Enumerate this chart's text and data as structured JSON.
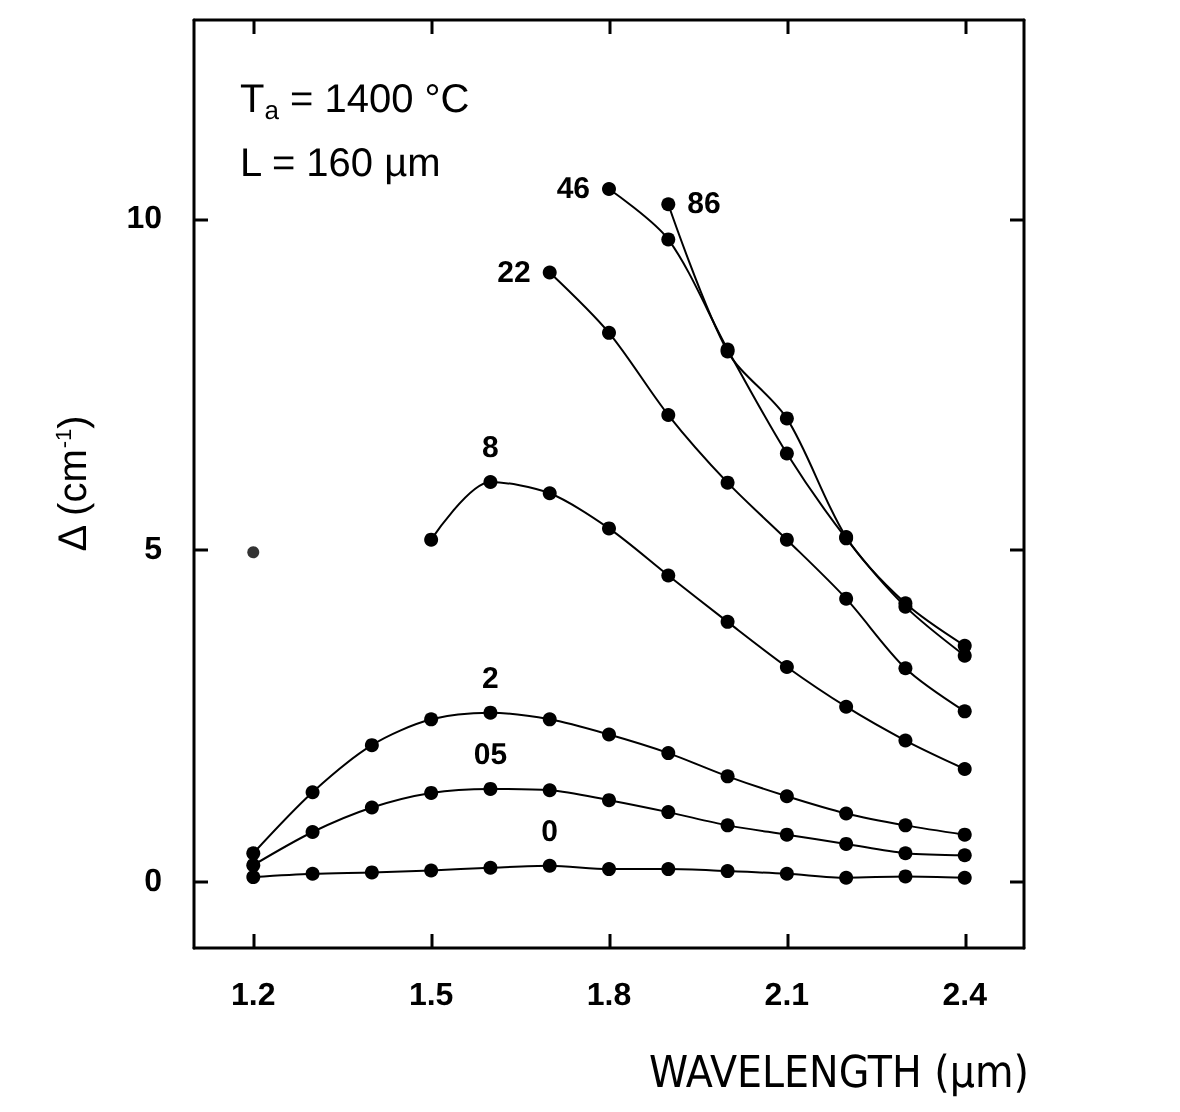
{
  "chart_data": {
    "type": "line",
    "xlabel": "WAVELENGTH (µm)",
    "ylabel": "Δ (cm$^{-1}$)",
    "annotations": [
      "T$_{a}$ = 1400 °C",
      "L = 160 µm"
    ],
    "xlim": [
      1.1,
      2.5
    ],
    "xticks": [
      1.2,
      1.5,
      1.8,
      2.1,
      2.4
    ],
    "ylim": [
      -1,
      13
    ],
    "yticks": [
      0,
      5,
      10
    ],
    "grid": false,
    "legend": false,
    "marker": "circle",
    "line_style": "solid",
    "series": [
      {
        "name": "0",
        "color": "#000000",
        "x": [
          1.2,
          1.3,
          1.4,
          1.5,
          1.6,
          1.7,
          1.8,
          1.9,
          2.0,
          2.1,
          2.2,
          2.3,
          2.4
        ],
        "values": [
          0.07,
          0.12,
          0.14,
          0.17,
          0.21,
          0.24,
          0.19,
          0.19,
          0.16,
          0.12,
          0.06,
          0.08,
          0.06
        ]
      },
      {
        "name": "05",
        "color": "#000000",
        "x": [
          1.2,
          1.3,
          1.4,
          1.5,
          1.6,
          1.7,
          1.8,
          1.9,
          2.0,
          2.1,
          2.2,
          2.3,
          2.4
        ],
        "values": [
          0.25,
          0.75,
          1.12,
          1.34,
          1.4,
          1.38,
          1.23,
          1.05,
          0.85,
          0.71,
          0.57,
          0.43,
          0.4
        ]
      },
      {
        "name": "2",
        "color": "#000000",
        "x": [
          1.2,
          1.3,
          1.4,
          1.5,
          1.6,
          1.7,
          1.8,
          1.9,
          2.0,
          2.1,
          2.2,
          2.3,
          2.4
        ],
        "values": [
          0.43,
          1.35,
          2.06,
          2.45,
          2.55,
          2.45,
          2.22,
          1.94,
          1.59,
          1.29,
          1.03,
          0.85,
          0.71
        ]
      },
      {
        "name": "8",
        "color": "#000000",
        "x": [
          1.5,
          1.6,
          1.7,
          1.8,
          1.9,
          2.0,
          2.1,
          2.2,
          2.3,
          2.4
        ],
        "values": [
          5.16,
          6.03,
          5.86,
          5.33,
          4.62,
          3.92,
          3.24,
          2.64,
          2.13,
          1.7
        ]
      },
      {
        "name": "22",
        "color": "#000000",
        "x": [
          1.7,
          1.8,
          1.9,
          2.0,
          2.1,
          2.2,
          2.3,
          2.4
        ],
        "values": [
          9.19,
          8.28,
          7.04,
          6.02,
          5.16,
          4.27,
          3.22,
          2.57
        ]
      },
      {
        "name": "46",
        "color": "#000000",
        "x": [
          1.8,
          1.9,
          2.0,
          2.1,
          2.2,
          2.3,
          2.4
        ],
        "values": [
          10.45,
          9.69,
          8.03,
          6.46,
          5.18,
          4.15,
          3.41
        ]
      },
      {
        "name": "86",
        "color": "#000000",
        "x": [
          1.9,
          2.0,
          2.1,
          2.2,
          2.3,
          2.4
        ],
        "values": [
          10.22,
          8.0,
          6.99,
          5.2,
          4.2,
          3.56
        ]
      },
      {
        "type": "scatter",
        "color": "#000000",
        "x": [
          1.2
        ],
        "values": [
          4.97
        ]
      }
    ]
  }
}
